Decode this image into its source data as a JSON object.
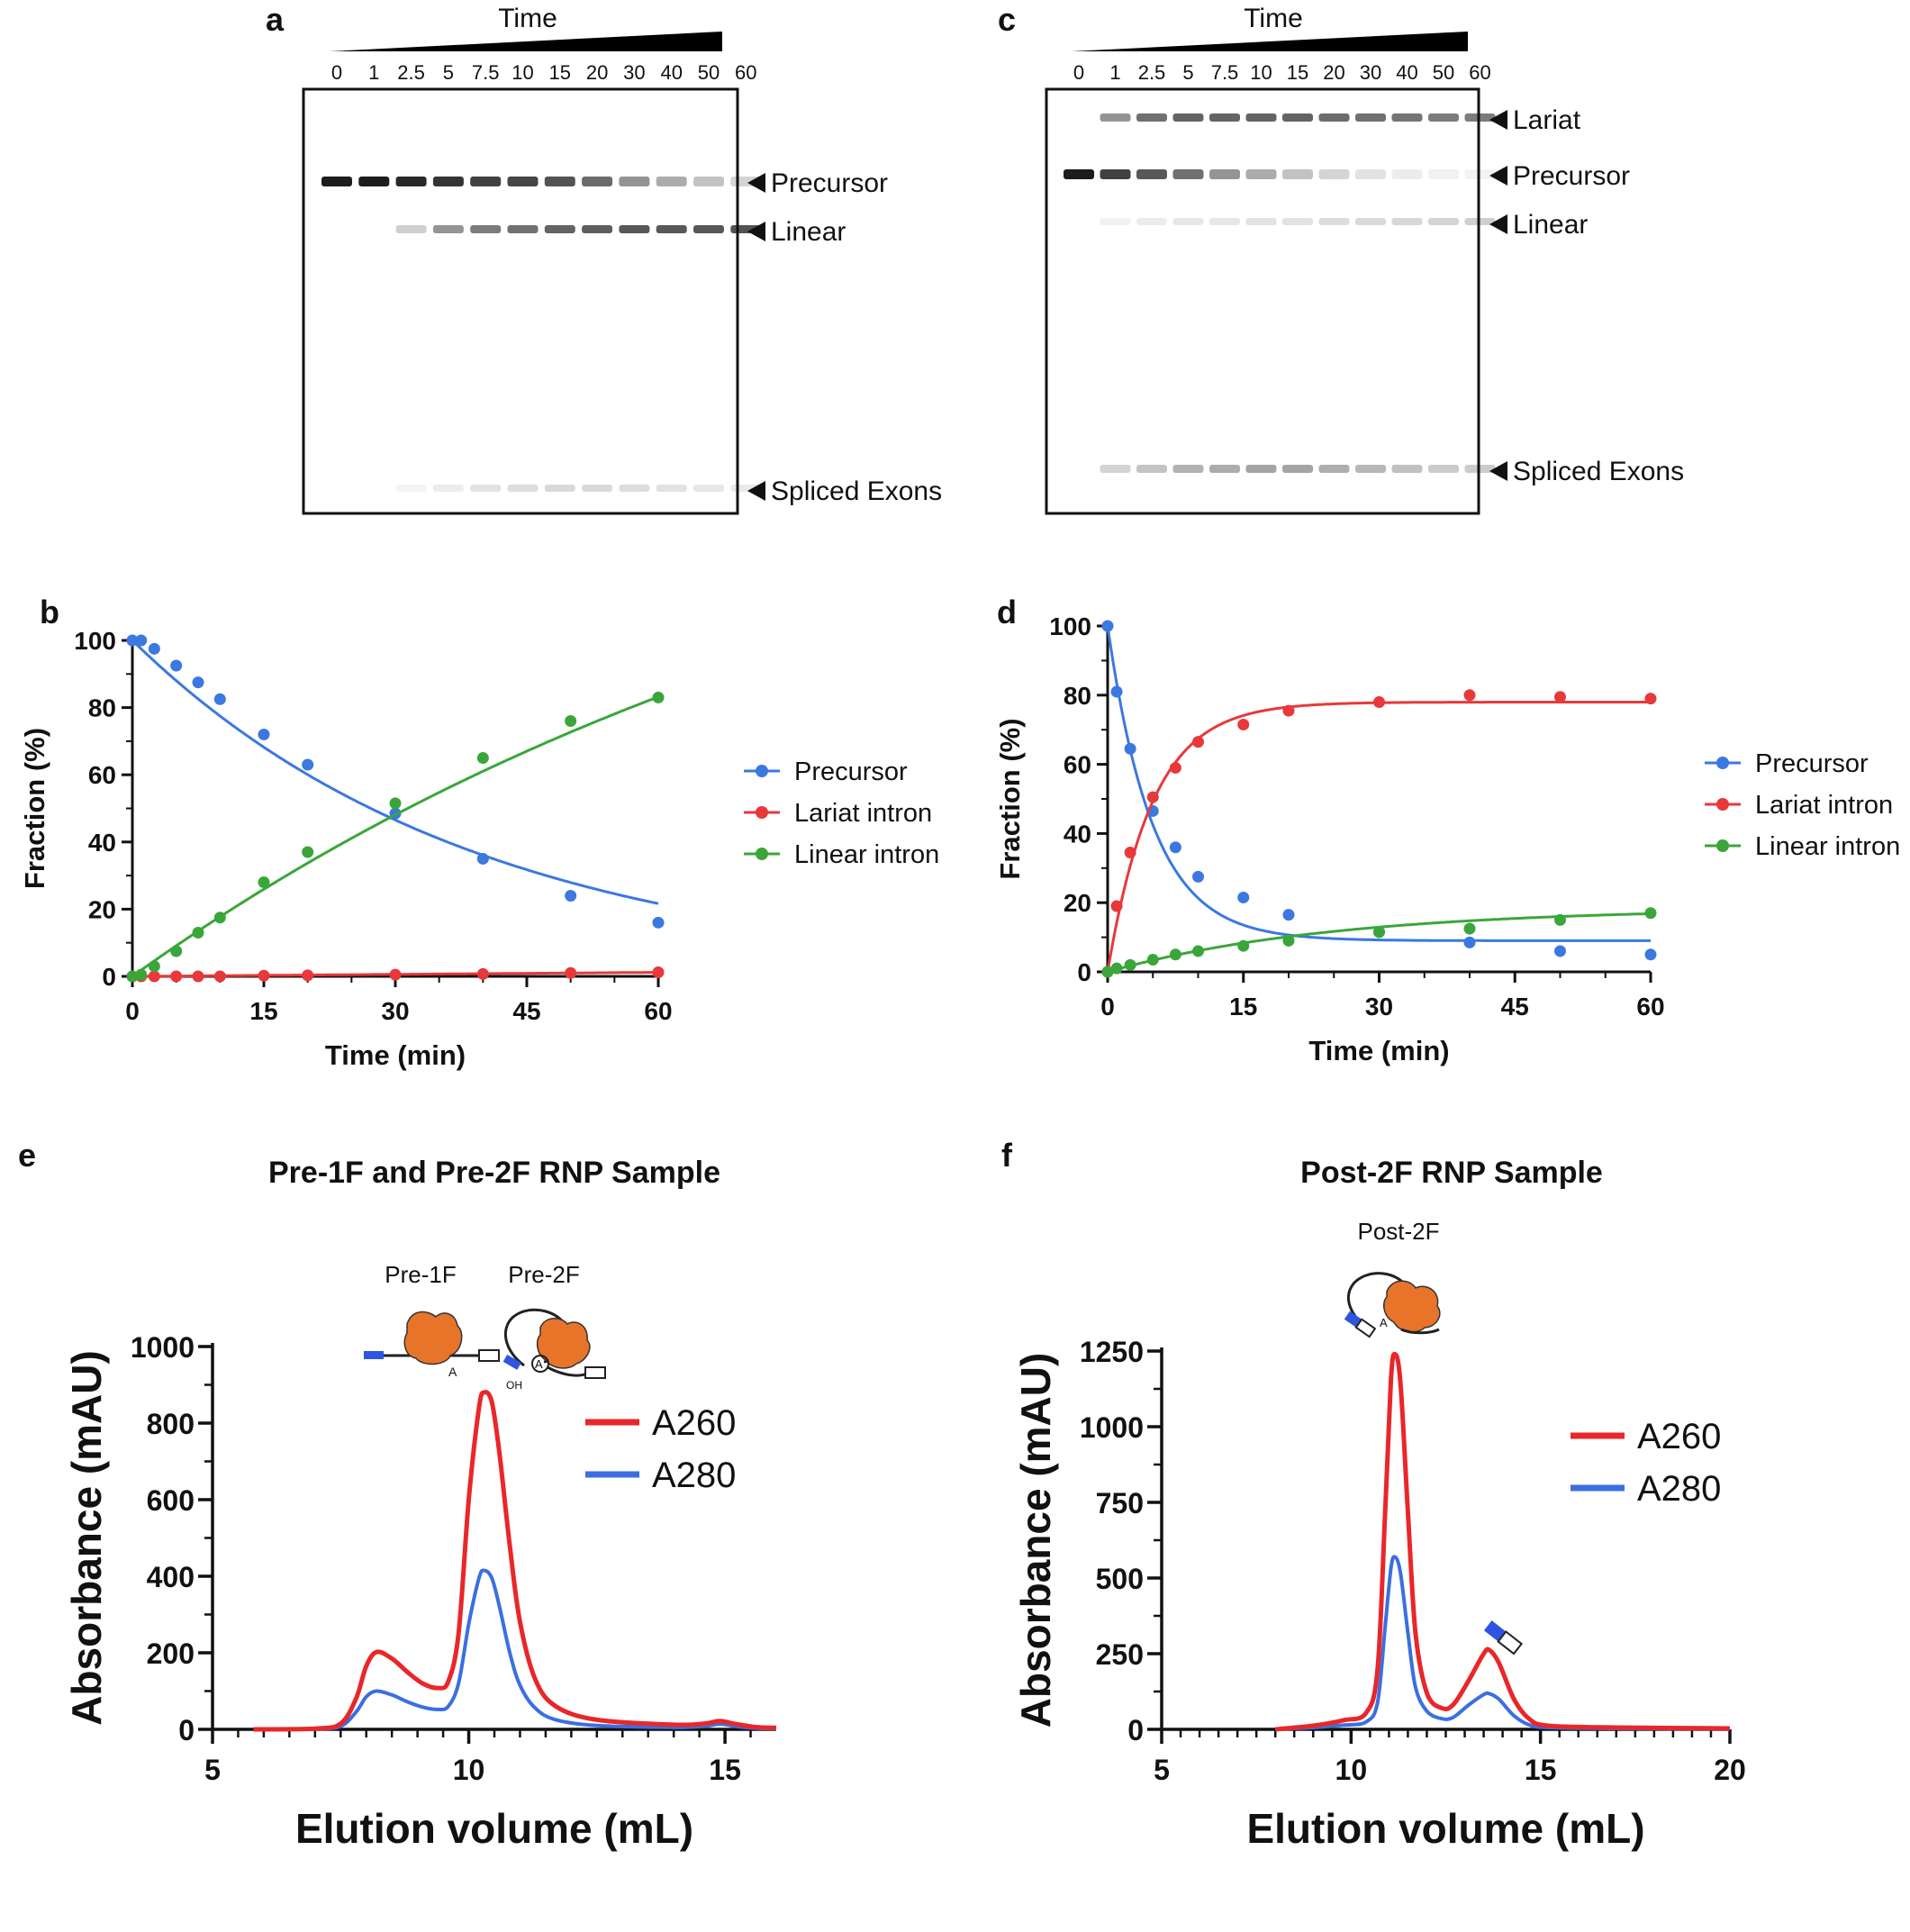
{
  "figure": {
    "panel_a": {
      "letter": "a",
      "time_label": "Time",
      "lanes": [
        "0",
        "1",
        "2.5",
        "5",
        "7.5",
        "10",
        "15",
        "20",
        "30",
        "40",
        "50",
        "60"
      ],
      "bands": [
        "Precursor",
        "Linear",
        "Spliced Exons"
      ]
    },
    "panel_c": {
      "letter": "c",
      "time_label": "Time",
      "lanes": [
        "0",
        "1",
        "2.5",
        "5",
        "7.5",
        "10",
        "15",
        "20",
        "30",
        "40",
        "50",
        "60"
      ],
      "bands": [
        "Lariat",
        "Precursor",
        "Linear",
        "Spliced Exons"
      ]
    }
  },
  "chart_data": [
    {
      "panel": "b",
      "type": "scatter",
      "xlabel": "Time (min)",
      "ylabel": "Fraction (%)",
      "xlim": [
        0,
        60
      ],
      "ylim": [
        0,
        100
      ],
      "xticks": [
        0,
        15,
        30,
        45,
        60
      ],
      "yticks": [
        0,
        20,
        40,
        60,
        80,
        100
      ],
      "colors": {
        "Precursor": "#3b78e0",
        "Lariat intron": "#e8383a",
        "Linear intron": "#3aa63a"
      },
      "x": [
        0,
        1,
        2.5,
        5,
        7.5,
        10,
        15,
        20,
        30,
        40,
        50,
        60
      ],
      "series": [
        {
          "name": "Precursor",
          "values": [
            100,
            100,
            97.5,
            92.5,
            87.5,
            82.5,
            72,
            63,
            48.5,
            35,
            24,
            16
          ],
          "fit": {
            "model": "decay",
            "a": 100,
            "k": 0.0255,
            "c": 0
          }
        },
        {
          "name": "Lariat intron",
          "values": [
            0,
            0,
            0,
            0,
            0,
            0,
            0.2,
            0.3,
            0.5,
            0.7,
            1,
            1.2
          ],
          "fit": {
            "model": "linear",
            "m": 0.02,
            "b": 0
          }
        },
        {
          "name": "Linear intron",
          "values": [
            0,
            0.5,
            3,
            7.5,
            13,
            17.5,
            28,
            37,
            51.5,
            65,
            76,
            83
          ],
          "fit": {
            "model": "rise",
            "a": 178,
            "k": 0.0105,
            "c": 0
          }
        }
      ],
      "legend": [
        "Precursor",
        "Lariat intron",
        "Linear intron"
      ]
    },
    {
      "panel": "d",
      "type": "scatter",
      "xlabel": "Time (min)",
      "ylabel": "Fraction (%)",
      "xlim": [
        0,
        60
      ],
      "ylim": [
        0,
        100
      ],
      "xticks": [
        0,
        15,
        30,
        45,
        60
      ],
      "yticks": [
        0,
        20,
        40,
        60,
        80,
        100
      ],
      "colors": {
        "Precursor": "#3b78e0",
        "Lariat intron": "#e8383a",
        "Linear intron": "#3aa63a"
      },
      "x": [
        0,
        1,
        2.5,
        5,
        7.5,
        10,
        15,
        20,
        30,
        40,
        50,
        60
      ],
      "series": [
        {
          "name": "Precursor",
          "values": [
            100,
            81,
            64.5,
            46.5,
            36,
            27.5,
            21.5,
            16.5,
            11.5,
            8.5,
            6,
            5
          ],
          "fit": {
            "model": "decay",
            "a": 91,
            "k": 0.2,
            "c": 9
          }
        },
        {
          "name": "Lariat intron",
          "values": [
            0,
            19,
            34.5,
            50.5,
            59,
            66.5,
            71.5,
            75.5,
            78,
            80,
            79.5,
            79
          ],
          "fit": {
            "model": "rise",
            "a": 78,
            "k": 0.2,
            "c": 0
          }
        },
        {
          "name": "Linear intron",
          "values": [
            0,
            1,
            2,
            3.5,
            5,
            6,
            7.5,
            9,
            11.5,
            12.5,
            15,
            17
          ],
          "fit": {
            "model": "rise",
            "a": 18.5,
            "k": 0.04,
            "c": 0
          }
        }
      ],
      "legend": [
        "Precursor",
        "Lariat intron",
        "Linear intron"
      ]
    },
    {
      "panel": "e",
      "type": "line",
      "title": "Pre-1F and Pre-2F RNP Sample",
      "xlabel": "Elution volume (mL)",
      "ylabel": "Absorbance (mAU)",
      "xlim": [
        5,
        16
      ],
      "ylim": [
        0,
        1000
      ],
      "xticks": [
        5,
        10,
        15
      ],
      "yticks": [
        0,
        200,
        400,
        600,
        800,
        1000
      ],
      "annotations": [
        "Pre-1F",
        "Pre-2F"
      ],
      "series": [
        {
          "name": "A260",
          "color": "#e8272a",
          "points": [
            [
              5.8,
              0
            ],
            [
              7,
              2
            ],
            [
              7.5,
              15
            ],
            [
              7.8,
              80
            ],
            [
              8.0,
              165
            ],
            [
              8.2,
              202
            ],
            [
              8.5,
              185
            ],
            [
              8.8,
              150
            ],
            [
              9.1,
              120
            ],
            [
              9.4,
              108
            ],
            [
              9.6,
              125
            ],
            [
              9.8,
              250
            ],
            [
              10.0,
              600
            ],
            [
              10.2,
              840
            ],
            [
              10.3,
              880
            ],
            [
              10.45,
              855
            ],
            [
              10.6,
              720
            ],
            [
              10.8,
              480
            ],
            [
              11.0,
              280
            ],
            [
              11.3,
              130
            ],
            [
              11.7,
              60
            ],
            [
              12.5,
              25
            ],
            [
              14,
              12
            ],
            [
              14.6,
              15
            ],
            [
              14.9,
              22
            ],
            [
              15.2,
              14
            ],
            [
              15.6,
              6
            ],
            [
              16,
              4
            ]
          ]
        },
        {
          "name": "A280",
          "color": "#3b6fe0",
          "points": [
            [
              5.8,
              0
            ],
            [
              7,
              1
            ],
            [
              7.5,
              8
            ],
            [
              7.8,
              45
            ],
            [
              8.0,
              85
            ],
            [
              8.2,
              100
            ],
            [
              8.5,
              90
            ],
            [
              8.8,
              72
            ],
            [
              9.1,
              58
            ],
            [
              9.4,
              52
            ],
            [
              9.6,
              60
            ],
            [
              9.8,
              120
            ],
            [
              10.0,
              275
            ],
            [
              10.2,
              395
            ],
            [
              10.3,
              415
            ],
            [
              10.45,
              395
            ],
            [
              10.6,
              320
            ],
            [
              10.8,
              200
            ],
            [
              11.0,
              115
            ],
            [
              11.3,
              55
            ],
            [
              11.7,
              25
            ],
            [
              12.5,
              10
            ],
            [
              14,
              5
            ],
            [
              14.6,
              8
            ],
            [
              14.9,
              14
            ],
            [
              15.2,
              8
            ],
            [
              15.6,
              3
            ],
            [
              16,
              2
            ]
          ]
        }
      ],
      "legend": [
        "A260",
        "A280"
      ]
    },
    {
      "panel": "f",
      "type": "line",
      "title": "Post-2F RNP Sample",
      "xlabel": "Elution volume (mL)",
      "ylabel": "Absorbance (mAU)",
      "xlim": [
        5,
        20
      ],
      "ylim": [
        0,
        1250
      ],
      "xticks": [
        5,
        10,
        15,
        20
      ],
      "yticks": [
        0,
        250,
        500,
        750,
        1000,
        1250
      ],
      "annotations": [
        "Post-2F"
      ],
      "series": [
        {
          "name": "A260",
          "color": "#e8272a",
          "points": [
            [
              8.0,
              0
            ],
            [
              9,
              12
            ],
            [
              9.8,
              30
            ],
            [
              10.4,
              55
            ],
            [
              10.7,
              200
            ],
            [
              10.9,
              720
            ],
            [
              11.05,
              1150
            ],
            [
              11.15,
              1240
            ],
            [
              11.3,
              1150
            ],
            [
              11.5,
              720
            ],
            [
              11.7,
              320
            ],
            [
              12.0,
              120
            ],
            [
              12.4,
              70
            ],
            [
              12.7,
              82
            ],
            [
              13.1,
              160
            ],
            [
              13.5,
              250
            ],
            [
              13.65,
              262
            ],
            [
              13.9,
              220
            ],
            [
              14.3,
              100
            ],
            [
              14.7,
              35
            ],
            [
              15.2,
              12
            ],
            [
              17,
              6
            ],
            [
              20,
              3
            ]
          ]
        },
        {
          "name": "A280",
          "color": "#3b6fe0",
          "points": [
            [
              8.0,
              0
            ],
            [
              9,
              6
            ],
            [
              9.8,
              14
            ],
            [
              10.4,
              25
            ],
            [
              10.7,
              90
            ],
            [
              10.9,
              340
            ],
            [
              11.05,
              530
            ],
            [
              11.15,
              570
            ],
            [
              11.3,
              520
            ],
            [
              11.5,
              320
            ],
            [
              11.7,
              140
            ],
            [
              12.0,
              60
            ],
            [
              12.4,
              35
            ],
            [
              12.7,
              40
            ],
            [
              13.1,
              80
            ],
            [
              13.5,
              115
            ],
            [
              13.65,
              118
            ],
            [
              13.9,
              100
            ],
            [
              14.3,
              45
            ],
            [
              14.7,
              15
            ],
            [
              15.2,
              6
            ],
            [
              17,
              3
            ],
            [
              20,
              1
            ]
          ]
        }
      ],
      "legend": [
        "A260",
        "A280"
      ]
    }
  ]
}
